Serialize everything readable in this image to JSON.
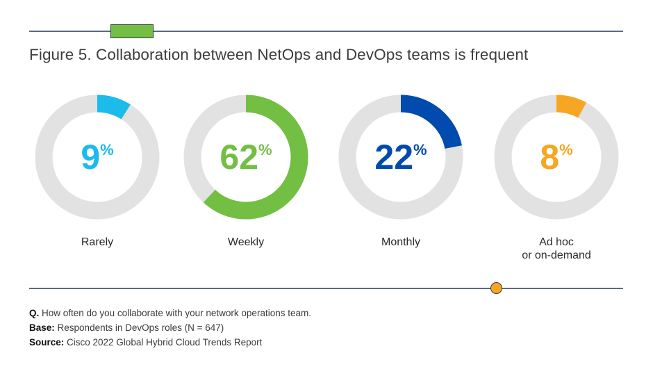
{
  "header": {
    "title": "Figure 5. Collaboration between NetOps and DevOps teams is frequent"
  },
  "colors": {
    "track": "#e2e2e2",
    "rule": "#5a6b82",
    "tab_accent": "#72bf44",
    "dot_accent": "#f6a623"
  },
  "chart_data": {
    "type": "pie",
    "style": "donut",
    "categories": [
      "Rarely",
      "Weekly",
      "Monthly",
      "Ad hoc or on-demand"
    ],
    "values": [
      9,
      62,
      22,
      8
    ],
    "unit": "%",
    "slices": [
      {
        "label": "Rarely",
        "label_lines": [
          "Rarely"
        ],
        "value": 9,
        "value_text": "9",
        "color": "#1dbbea"
      },
      {
        "label": "Weekly",
        "label_lines": [
          "Weekly"
        ],
        "value": 62,
        "value_text": "62",
        "color": "#72bf44"
      },
      {
        "label": "Monthly",
        "label_lines": [
          "Monthly"
        ],
        "value": 22,
        "value_text": "22",
        "color": "#004bad"
      },
      {
        "label": "Ad hoc or on-demand",
        "label_lines": [
          "Ad hoc",
          "or on-demand"
        ],
        "value": 8,
        "value_text": "8",
        "color": "#f6a623"
      }
    ]
  },
  "notes": {
    "q_label": "Q.",
    "q_text": " How often do you collaborate with your network operations team.",
    "base_label": "Base:",
    "base_text": " Respondents in DevOps roles  (N = 647)",
    "source_label": "Source:",
    "source_text": " Cisco 2022 Global Hybrid Cloud Trends Report"
  }
}
